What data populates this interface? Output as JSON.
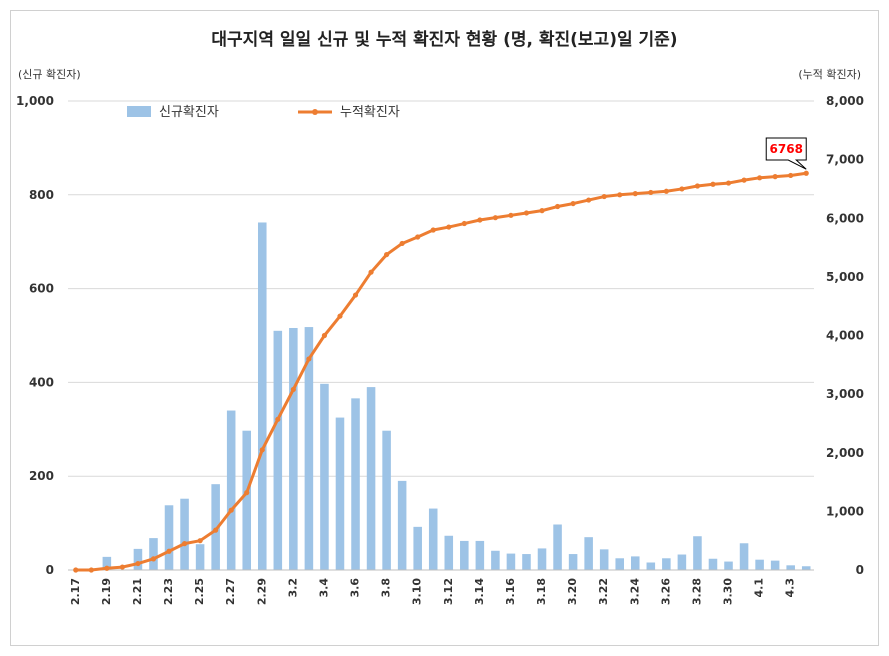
{
  "chart_data": {
    "type": "bar",
    "title": "대구지역 일일 신규 및 누적 확진자 현황 (명, 확진(보고)일 기준)",
    "ylabel": "(신규 확진자)",
    "y2label": "(누적 확진자)",
    "ylim": [
      0,
      1000
    ],
    "y2lim": [
      0,
      8000
    ],
    "yticks": [
      "0",
      "200",
      "400",
      "600",
      "800",
      "1,000"
    ],
    "y2ticks": [
      "0",
      "1,000",
      "2,000",
      "3,000",
      "4,000",
      "5,000",
      "6,000",
      "7,000",
      "8,000"
    ],
    "xticks_every": 2,
    "categories": [
      "2.17",
      "2.18",
      "2.19",
      "2.20",
      "2.21",
      "2.22",
      "2.23",
      "2.24",
      "2.25",
      "2.26",
      "2.27",
      "2.28",
      "2.29",
      "3.1",
      "3.2",
      "3.3",
      "3.4",
      "3.5",
      "3.6",
      "3.7",
      "3.8",
      "3.9",
      "3.10",
      "3.11",
      "3.12",
      "3.13",
      "3.14",
      "3.15",
      "3.16",
      "3.17",
      "3.18",
      "3.19",
      "3.20",
      "3.21",
      "3.22",
      "3.23",
      "3.24",
      "3.25",
      "3.26",
      "3.27",
      "3.28",
      "3.29",
      "3.30",
      "3.31",
      "4.1",
      "4.2",
      "4.3",
      "4.4"
    ],
    "series": [
      {
        "name": "신규확진자",
        "type": "bar",
        "axis": "left",
        "color": "#9dc3e6",
        "values": [
          0,
          0,
          28,
          0,
          45,
          68,
          138,
          152,
          55,
          183,
          340,
          297,
          741,
          510,
          516,
          518,
          397,
          325,
          366,
          390,
          297,
          190,
          92,
          131,
          73,
          62,
          62,
          41,
          35,
          34,
          46,
          97,
          34,
          70,
          44,
          25,
          29,
          16,
          25,
          33,
          72,
          24,
          18,
          57,
          22,
          20,
          10,
          8
        ]
      },
      {
        "name": "누적확진자",
        "type": "line",
        "axis": "right",
        "color": "#ed7d31",
        "values": [
          0,
          0,
          30,
          50,
          110,
          190,
          320,
          450,
          500,
          680,
          1020,
          1320,
          2050,
          2570,
          3080,
          3600,
          4000,
          4330,
          4690,
          5080,
          5380,
          5570,
          5680,
          5800,
          5850,
          5910,
          5970,
          6010,
          6050,
          6090,
          6130,
          6200,
          6250,
          6310,
          6370,
          6400,
          6420,
          6440,
          6460,
          6500,
          6550,
          6580,
          6600,
          6650,
          6690,
          6710,
          6730,
          6768
        ]
      }
    ],
    "annotation": {
      "text": "6768",
      "color": "#ff0000"
    },
    "legend": "top-left",
    "grid": true
  }
}
